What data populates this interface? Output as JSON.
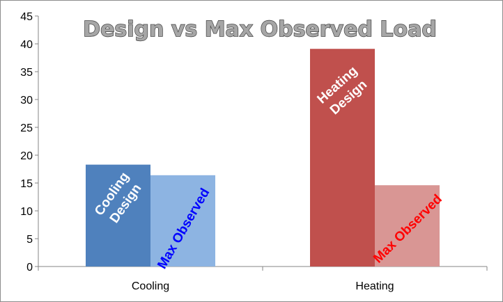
{
  "chart_data": {
    "type": "bar",
    "title": "Design vs Max Observed Load",
    "categories": [
      "Cooling",
      "Heating"
    ],
    "ylim": [
      0,
      45
    ],
    "yticks": [
      0,
      5,
      10,
      15,
      20,
      25,
      30,
      35,
      40,
      45
    ],
    "bars": [
      {
        "category": "Cooling",
        "value": 18.3,
        "label_lines": [
          "Cooling",
          "Design"
        ],
        "color": "#4f81bd",
        "label_color": "#ffffff",
        "rotate": -55
      },
      {
        "category": "Cooling",
        "value": 16.4,
        "label_lines": [
          "Max Observed"
        ],
        "color": "#8db4e2",
        "label_color": "#0000ff",
        "rotate": -60
      },
      {
        "category": "Heating",
        "value": 39.1,
        "label_lines": [
          "Heating",
          "Design"
        ],
        "color": "#c0504d",
        "label_color": "#ffffff",
        "rotate": -42
      },
      {
        "category": "Heating",
        "value": 14.6,
        "label_lines": [
          "Max Observed"
        ],
        "color": "#d99694",
        "label_color": "#ff0000",
        "rotate": -45
      }
    ],
    "grid": false,
    "legend": "none"
  }
}
